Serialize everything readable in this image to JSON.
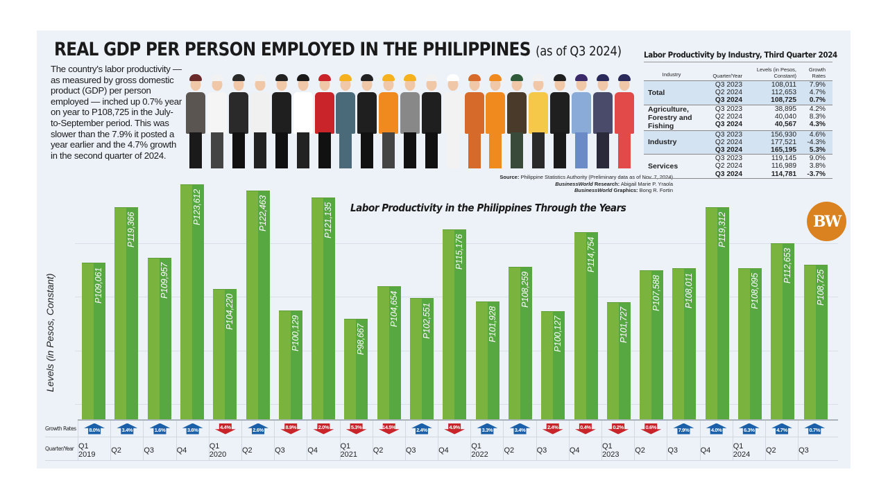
{
  "header": {
    "title": "REAL GDP PER PERSON EMPLOYED IN THE PHILIPPINES",
    "subtitle": "(as of Q3 2024)",
    "intro": "The country's labor productivity — as measured by gross domestic product (GDP) per person employed — inched up 0.7% year on year to P108,725 in the July-to-September period. This was slower than the 7.9% it posted a year earlier and the 4.7% growth in the second quarter of 2024."
  },
  "credits": {
    "source_label": "Source:",
    "source": "Philippine Statistics Authority (Preliminary data as of Nov. 7, 2024)",
    "research_brand": "BusinessWorld",
    "research_label": "Research:",
    "research": "Abigail Marie P. Yraola",
    "graphics_brand": "BusinessWorld",
    "graphics_label": "Graphics:",
    "graphics": "Bong R. Fortin"
  },
  "logo": {
    "text": "BW",
    "color": "#d9821f"
  },
  "industry_table": {
    "title": "Labor Productivity by Industry, Third Quarter 2024",
    "headers": {
      "industry": "Industry",
      "quarter": "Quarter/Year",
      "levels": "Levels (in Pesos, Constant)",
      "growth": "Growth Rates"
    },
    "groups": [
      {
        "industry": "Total",
        "rows": [
          {
            "quarter": "Q3 2023",
            "level": "108,011",
            "growth": "7.9%"
          },
          {
            "quarter": "Q2 2024",
            "level": "112,653",
            "growth": "4.7%"
          },
          {
            "quarter": "Q3 2024",
            "level": "108,725",
            "growth": "0.7%"
          }
        ]
      },
      {
        "industry": "Agriculture, Forestry and Fishing",
        "rows": [
          {
            "quarter": "Q3 2023",
            "level": "38,895",
            "growth": "4.2%"
          },
          {
            "quarter": "Q2 2024",
            "level": "40,040",
            "growth": "8.3%"
          },
          {
            "quarter": "Q3 2024",
            "level": "40,567",
            "growth": "4.3%"
          }
        ]
      },
      {
        "industry": "Industry",
        "rows": [
          {
            "quarter": "Q3 2023",
            "level": "156,930",
            "growth": "4.6%"
          },
          {
            "quarter": "Q2 2024",
            "level": "177,521",
            "growth": "-4.3%"
          },
          {
            "quarter": "Q3 2024",
            "level": "165,195",
            "growth": "5.3%"
          }
        ]
      },
      {
        "industry": "Services",
        "rows": [
          {
            "quarter": "Q3 2023",
            "level": "119,145",
            "growth": "9.0%"
          },
          {
            "quarter": "Q2 2024",
            "level": "116,989",
            "growth": "3.8%"
          },
          {
            "quarter": "Q3 2024",
            "level": "114,781",
            "growth": "-3.7%"
          }
        ]
      }
    ]
  },
  "chart_data": {
    "type": "bar",
    "title": "Labor Productivity in the Philippines Through the Years",
    "xlabel": "Quarter/Year",
    "ylabel": "Levels (in Pesos, Constant)",
    "ylim": [
      80000,
      126000
    ],
    "grid": true,
    "row_labels": {
      "growth": "Growth Rates",
      "quarter": "Quarter/Year"
    },
    "categories": [
      "Q1 2019",
      "Q2 2019",
      "Q3 2019",
      "Q4 2019",
      "Q1 2020",
      "Q2 2020",
      "Q3 2020",
      "Q4 2020",
      "Q1 2021",
      "Q2 2021",
      "Q3 2021",
      "Q4 2021",
      "Q1 2022",
      "Q2 2022",
      "Q3 2022",
      "Q4 2022",
      "Q1 2023",
      "Q2 2023",
      "Q3 2023",
      "Q4 2023",
      "Q1 2024",
      "Q2 2024",
      "Q3 2024"
    ],
    "quarter_labels": [
      "Q1",
      "Q2",
      "Q3",
      "Q4",
      "Q1",
      "Q2",
      "Q3",
      "Q4",
      "Q1",
      "Q2",
      "Q3",
      "Q4",
      "Q1",
      "Q2",
      "Q3",
      "Q4",
      "Q1",
      "Q2",
      "Q3",
      "Q4",
      "Q1",
      "Q2",
      "Q3"
    ],
    "year_labels": [
      "2019",
      "",
      "",
      "",
      "2020",
      "",
      "",
      "",
      "2021",
      "",
      "",
      "",
      "2022",
      "",
      "",
      "",
      "2023",
      "",
      "",
      "",
      "2024",
      "",
      ""
    ],
    "values": [
      109061,
      119366,
      109957,
      123612,
      104220,
      122463,
      100129,
      121135,
      98667,
      104654,
      102551,
      115176,
      101928,
      108259,
      100127,
      114754,
      101727,
      107588,
      108011,
      119312,
      108095,
      112653,
      108725
    ],
    "value_labels": [
      "P109,061",
      "P119,366",
      "P109,957",
      "P123,612",
      "P104,220",
      "P122,463",
      "P100,129",
      "P121,135",
      "P98,667",
      "P104,654",
      "P102,551",
      "P115,176",
      "P101,928",
      "P108,259",
      "P100,127",
      "P114,754",
      "P101,727",
      "P107,588",
      "P108,011",
      "P119,312",
      "P108,095",
      "P112,653",
      "P108,725"
    ],
    "growth_rates": [
      "8.0%",
      "3.4%",
      "1.6%",
      "3.6%",
      "4.4%",
      "2.6%",
      "8.9%",
      "2.0%",
      "5.3%",
      "14.5%",
      "2.4%",
      "4.9%",
      "3.3%",
      "3.4%",
      "2.4%",
      "0.4%",
      "0.2%",
      "0.6%",
      "7.9%",
      "4.0%",
      "6.3%",
      "4.7%",
      "0.7%"
    ],
    "growth_direction": [
      "up",
      "up",
      "up",
      "up",
      "down",
      "up",
      "down",
      "down",
      "down",
      "down",
      "up",
      "down",
      "up",
      "up",
      "down",
      "down",
      "down",
      "down",
      "up",
      "up",
      "up",
      "up",
      "up"
    ],
    "colors": {
      "bar_light": "#7ab43e",
      "bar_dark": "#58a842",
      "up": "#1a5fa8",
      "down": "#c8242a"
    }
  },
  "people_colors": [
    [
      "#6b2a2a",
      "#5a5550",
      "#1a1a1a",
      "#a34a2a"
    ],
    [
      "#f2f2f2",
      "#f5f5f5",
      "#444444",
      "#333333"
    ],
    [
      "#2a2a2a",
      "#2a2a2a",
      "#111111",
      "#5a3a2a"
    ],
    [
      "#f2f2f2",
      "#f0f0f0",
      "#222222",
      "#6b4a2a"
    ],
    [
      "#222222",
      "#1f1f1f",
      "#111111",
      "#5a3a2a"
    ],
    [
      "#1a1a1a",
      "#ffffff",
      "#222222",
      "#6b4a2a"
    ],
    [
      "#c8242a",
      "#c8242a",
      "#111111",
      "#222222"
    ],
    [
      "#f5b21e",
      "#4a6a7a",
      "#4a6a7a",
      "#7a4a2a"
    ],
    [
      "#222222",
      "#1f1f1f",
      "#111111",
      "#4a3a2a"
    ],
    [
      "#f5b21e",
      "#f08a1e",
      "#444444",
      "#a56a3a"
    ],
    [
      "#f5b21e",
      "#888888",
      "#111111",
      "#5a3a2a"
    ],
    [
      "#f2f2f2",
      "#1f1f1f",
      "#111111",
      "#5a3a2a"
    ],
    [
      "#ffffff",
      "#f2f2f2",
      "#f2f2f2",
      "#c99"
    ],
    [
      "#d66a2a",
      "#d66a2a",
      "#d66a2a",
      "#d66a2a"
    ],
    [
      "#f08a1e",
      "#f08a1e",
      "#f08a1e",
      "#6b3a1a"
    ],
    [
      "#2e5a3a",
      "#4a3a2a",
      "#3a4a3a",
      "#5a3a1a"
    ],
    [
      "#f2f2f2",
      "#f5c84a",
      "#2a2a2a",
      "#6b3a1a"
    ],
    [
      "#1f1f1f",
      "#1f1f1f",
      "#1a1a1a",
      "#6b4a2a"
    ],
    [
      "#3a2a6a",
      "#8aaad8",
      "#6a8ac8",
      "#7a4a2a"
    ],
    [
      "#2a2a5a",
      "#4a4a6a",
      "#2a2a3a",
      "#5a3a2a"
    ],
    [
      "#2a2a5a",
      "#e24a4a",
      "#e24a4a",
      "#7a4a2a"
    ]
  ]
}
